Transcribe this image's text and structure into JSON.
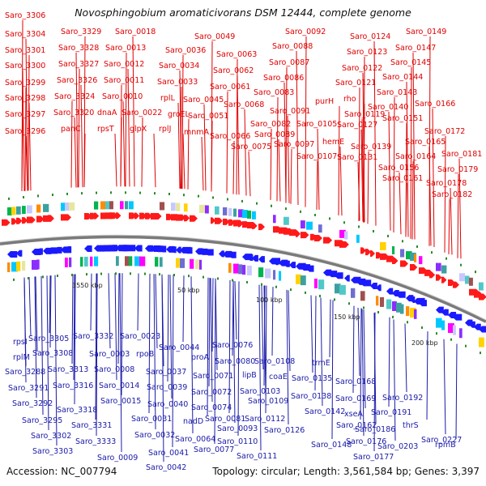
{
  "title": "Novosphingobium aromaticivorans DSM 12444, complete genome",
  "footer": {
    "accession": "Accession: NC_007794",
    "summary": "Topology: circular; Length: 3,561,584 bp; Genes: 3,397"
  },
  "colors": {
    "top_labels": "#e00000",
    "bottom_labels": "#1a1aa8",
    "forward_strand": "#ff1a1a",
    "reverse_strand": "#1a1aff",
    "backbone": "#808080",
    "tick_marks": "#2a8a2a"
  },
  "ticks": [
    {
      "text": "3550 kbp"
    },
    {
      "text": "50 kbp"
    },
    {
      "text": "100 kbp"
    },
    {
      "text": "150 kbp"
    },
    {
      "text": "200 kbp"
    }
  ],
  "top_labels": [
    {
      "text": "Saro_3306"
    },
    {
      "text": "Saro_3304"
    },
    {
      "text": "Saro_3301"
    },
    {
      "text": "Saro_3300"
    },
    {
      "text": "Saro_3299"
    },
    {
      "text": "Saro_3298"
    },
    {
      "text": "Saro_3297"
    },
    {
      "text": "Saro_3296"
    },
    {
      "text": "Saro_3329"
    },
    {
      "text": "Saro_3328"
    },
    {
      "text": "Saro_3327"
    },
    {
      "text": "Saro_3326"
    },
    {
      "text": "Saro_3324"
    },
    {
      "text": "Saro_3320"
    },
    {
      "text": "panC"
    },
    {
      "text": "Saro_0018"
    },
    {
      "text": "Saro_0013"
    },
    {
      "text": "Saro_0012"
    },
    {
      "text": "Saro_0011"
    },
    {
      "text": "Saro_0010"
    },
    {
      "text": "dnaA"
    },
    {
      "text": "rpsT"
    },
    {
      "text": "Saro_0022"
    },
    {
      "text": "glpX"
    },
    {
      "text": "Saro_0036"
    },
    {
      "text": "Saro_0034"
    },
    {
      "text": "Saro_0033"
    },
    {
      "text": "rplL"
    },
    {
      "text": "groEL"
    },
    {
      "text": "rplJ"
    },
    {
      "text": "Saro_0049"
    },
    {
      "text": "Saro_0045"
    },
    {
      "text": "Saro_0051"
    },
    {
      "text": "mnmA"
    },
    {
      "text": "Saro_0063"
    },
    {
      "text": "Saro_0062"
    },
    {
      "text": "Saro_0061"
    },
    {
      "text": "Saro_0068"
    },
    {
      "text": "Saro_0066"
    },
    {
      "text": "Saro_0075"
    },
    {
      "text": "Saro_0092"
    },
    {
      "text": "Saro_0088"
    },
    {
      "text": "Saro_0087"
    },
    {
      "text": "Saro_0086"
    },
    {
      "text": "Saro_0083"
    },
    {
      "text": "Saro_0091"
    },
    {
      "text": "Saro_0082"
    },
    {
      "text": "Saro_0089"
    },
    {
      "text": "Saro_0097"
    },
    {
      "text": "Saro_0105"
    },
    {
      "text": "purH"
    },
    {
      "text": "hemE"
    },
    {
      "text": "Saro_0107"
    },
    {
      "text": "Saro_0124"
    },
    {
      "text": "Saro_0123"
    },
    {
      "text": "Saro_0122"
    },
    {
      "text": "Saro_0121"
    },
    {
      "text": "Saro_0119"
    },
    {
      "text": "rho"
    },
    {
      "text": "Saro_0127"
    },
    {
      "text": "Saro_0139"
    },
    {
      "text": "Saro_0131"
    },
    {
      "text": "Saro_0149"
    },
    {
      "text": "Saro_0147"
    },
    {
      "text": "Saro_0145"
    },
    {
      "text": "Saro_0144"
    },
    {
      "text": "Saro_0143"
    },
    {
      "text": "Saro_0140"
    },
    {
      "text": "Saro_0151"
    },
    {
      "text": "Saro_0166"
    },
    {
      "text": "Saro_0172"
    },
    {
      "text": "Saro_0165"
    },
    {
      "text": "Saro_0164"
    },
    {
      "text": "Saro_0156"
    },
    {
      "text": "Saro_0161"
    },
    {
      "text": "Saro_0181"
    },
    {
      "text": "Saro_0179"
    },
    {
      "text": "Saro_0178"
    },
    {
      "text": "Saro_0182"
    }
  ],
  "bottom_labels": [
    {
      "text": "rpsI"
    },
    {
      "text": "Saro_3305"
    },
    {
      "text": "rplM"
    },
    {
      "text": "Saro_3308"
    },
    {
      "text": "Saro_3288"
    },
    {
      "text": "Saro_3313"
    },
    {
      "text": "Saro_3291"
    },
    {
      "text": "Saro_3316"
    },
    {
      "text": "Saro_3292"
    },
    {
      "text": "Saro_3318"
    },
    {
      "text": "Saro_3295"
    },
    {
      "text": "Saro_3331"
    },
    {
      "text": "Saro_3302"
    },
    {
      "text": "Saro_3333"
    },
    {
      "text": "Saro_3303"
    },
    {
      "text": "Saro_3332"
    },
    {
      "text": "Saro_0003"
    },
    {
      "text": "Saro_0008"
    },
    {
      "text": "Saro_0014"
    },
    {
      "text": "Saro_0015"
    },
    {
      "text": "Saro_0009"
    },
    {
      "text": "Saro_0023"
    },
    {
      "text": "rpoB"
    },
    {
      "text": "Saro_0044"
    },
    {
      "text": "Saro_0037"
    },
    {
      "text": "Saro_0039"
    },
    {
      "text": "Saro_0040"
    },
    {
      "text": "Saro_0031"
    },
    {
      "text": "Saro_0032"
    },
    {
      "text": "Saro_0041"
    },
    {
      "text": "Saro_0042"
    },
    {
      "text": "proA"
    },
    {
      "text": "Saro_0071"
    },
    {
      "text": "Saro_0072"
    },
    {
      "text": "Saro_0074"
    },
    {
      "text": "nadD"
    },
    {
      "text": "Saro_0064"
    },
    {
      "text": "Saro_0077"
    },
    {
      "text": "Saro_0076"
    },
    {
      "text": "Saro_0080"
    },
    {
      "text": "lipB"
    },
    {
      "text": "Saro_0081"
    },
    {
      "text": "Saro_0093"
    },
    {
      "text": "Saro_0110"
    },
    {
      "text": "Saro_0111"
    },
    {
      "text": "Saro_0108"
    },
    {
      "text": "coaE"
    },
    {
      "text": "Saro_0103"
    },
    {
      "text": "Saro_0109"
    },
    {
      "text": "Saro_0112"
    },
    {
      "text": "Saro_0126"
    },
    {
      "text": "trmE"
    },
    {
      "text": "Saro_0135"
    },
    {
      "text": "Saro_0138"
    },
    {
      "text": "Saro_0142"
    },
    {
      "text": "Saro_0148"
    },
    {
      "text": "Saro_0168"
    },
    {
      "text": "Saro_0169"
    },
    {
      "text": "xseA"
    },
    {
      "text": "Saro_0162"
    },
    {
      "text": "Saro_0176"
    },
    {
      "text": "Saro_0177"
    },
    {
      "text": "Saro_0192"
    },
    {
      "text": "Saro_0191"
    },
    {
      "text": "Saro_0186"
    },
    {
      "text": "thrS"
    },
    {
      "text": "Saro_0203"
    },
    {
      "text": "rpmB"
    },
    {
      "text": "Saro_0227"
    }
  ]
}
